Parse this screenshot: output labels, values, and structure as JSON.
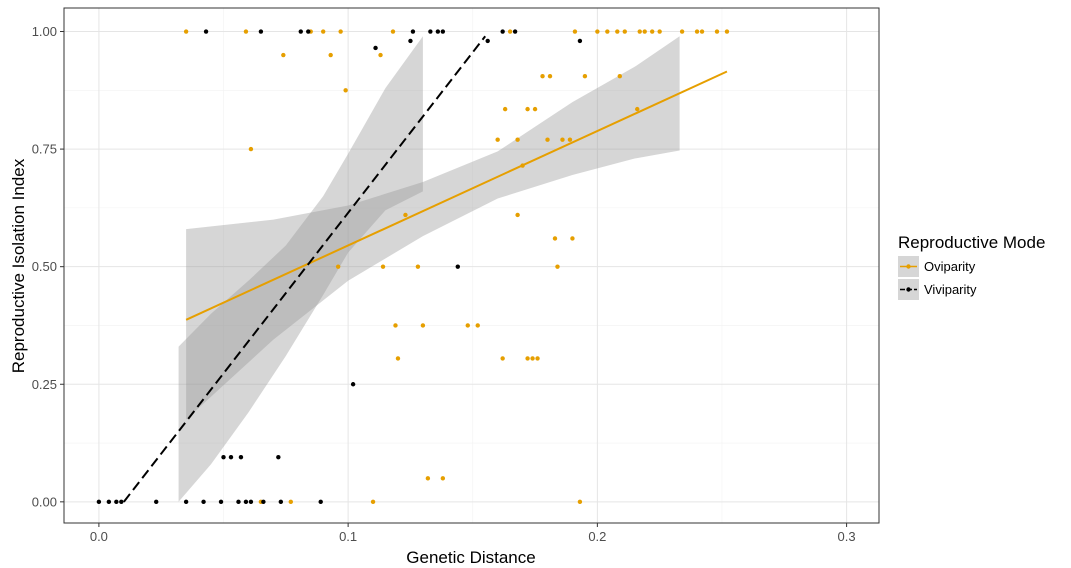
{
  "chart_data": {
    "type": "scatter",
    "xlabel": "Genetic Distance",
    "ylabel": "Reproductive Isolation Index",
    "xlim": [
      -0.014,
      0.313
    ],
    "ylim": [
      -0.045,
      1.05
    ],
    "x_ticks": [
      0.0,
      0.1,
      0.2,
      0.3
    ],
    "x_tick_labels": [
      "0.0",
      "0.1",
      "0.2",
      "0.3"
    ],
    "y_ticks": [
      0.0,
      0.25,
      0.5,
      0.75,
      1.0
    ],
    "y_tick_labels": [
      "0.00",
      "0.25",
      "0.50",
      "0.75",
      "1.00"
    ],
    "grid": true,
    "legend": {
      "title": "Reproductive Mode",
      "position": "right"
    },
    "series": [
      {
        "name": "Oviparity",
        "color": "#E69F00",
        "line_style": "solid",
        "points": [
          [
            0.035,
            1.0
          ],
          [
            0.059,
            1.0
          ],
          [
            0.074,
            0.95
          ],
          [
            0.085,
            1.0
          ],
          [
            0.09,
            1.0
          ],
          [
            0.093,
            0.95
          ],
          [
            0.097,
            1.0
          ],
          [
            0.099,
            0.875
          ],
          [
            0.113,
            0.95
          ],
          [
            0.118,
            1.0
          ],
          [
            0.119,
            0.375
          ],
          [
            0.12,
            0.305
          ],
          [
            0.123,
            0.61
          ],
          [
            0.128,
            0.5
          ],
          [
            0.13,
            0.375
          ],
          [
            0.132,
            0.05
          ],
          [
            0.138,
            0.05
          ],
          [
            0.148,
            0.375
          ],
          [
            0.152,
            0.375
          ],
          [
            0.16,
            0.77
          ],
          [
            0.162,
            0.305
          ],
          [
            0.163,
            0.835
          ],
          [
            0.165,
            1.0
          ],
          [
            0.168,
            0.61
          ],
          [
            0.168,
            0.77
          ],
          [
            0.17,
            0.715
          ],
          [
            0.172,
            0.305
          ],
          [
            0.172,
            0.835
          ],
          [
            0.174,
            0.305
          ],
          [
            0.175,
            0.835
          ],
          [
            0.176,
            0.305
          ],
          [
            0.178,
            0.905
          ],
          [
            0.18,
            0.77
          ],
          [
            0.181,
            0.905
          ],
          [
            0.183,
            0.56
          ],
          [
            0.184,
            0.5
          ],
          [
            0.186,
            0.77
          ],
          [
            0.189,
            0.77
          ],
          [
            0.19,
            0.56
          ],
          [
            0.191,
            1.0
          ],
          [
            0.193,
            0.0
          ],
          [
            0.195,
            0.905
          ],
          [
            0.2,
            1.0
          ],
          [
            0.204,
            1.0
          ],
          [
            0.208,
            1.0
          ],
          [
            0.209,
            0.905
          ],
          [
            0.211,
            1.0
          ],
          [
            0.216,
            0.835
          ],
          [
            0.217,
            1.0
          ],
          [
            0.219,
            1.0
          ],
          [
            0.222,
            1.0
          ],
          [
            0.225,
            1.0
          ],
          [
            0.234,
            1.0
          ],
          [
            0.24,
            1.0
          ],
          [
            0.242,
            1.0
          ],
          [
            0.248,
            1.0
          ],
          [
            0.252,
            1.0
          ],
          [
            0.061,
            0.75
          ],
          [
            0.065,
            0.0
          ],
          [
            0.077,
            0.0
          ],
          [
            0.11,
            0.0
          ],
          [
            0.096,
            0.5
          ],
          [
            0.114,
            0.5
          ]
        ],
        "fit_line": [
          [
            0.035,
            0.387
          ],
          [
            0.252,
            0.915
          ]
        ],
        "confidence_band": {
          "x": [
            0.035,
            0.07,
            0.1,
            0.13,
            0.16,
            0.19,
            0.215,
            0.233
          ],
          "lower": [
            0.175,
            0.345,
            0.47,
            0.565,
            0.645,
            0.695,
            0.73,
            0.747
          ],
          "upper": [
            0.58,
            0.6,
            0.63,
            0.68,
            0.745,
            0.85,
            0.925,
            0.99
          ]
        }
      },
      {
        "name": "Viviparity",
        "color": "#000000",
        "line_style": "dashed",
        "points": [
          [
            0.0,
            0.0
          ],
          [
            0.004,
            0.0
          ],
          [
            0.007,
            0.0
          ],
          [
            0.009,
            0.0
          ],
          [
            0.023,
            0.0
          ],
          [
            0.035,
            0.0
          ],
          [
            0.042,
            0.0
          ],
          [
            0.043,
            1.0
          ],
          [
            0.049,
            0.0
          ],
          [
            0.05,
            0.095
          ],
          [
            0.053,
            0.095
          ],
          [
            0.056,
            0.0
          ],
          [
            0.057,
            0.095
          ],
          [
            0.059,
            0.0
          ],
          [
            0.061,
            0.0
          ],
          [
            0.065,
            1.0
          ],
          [
            0.066,
            0.0
          ],
          [
            0.072,
            0.095
          ],
          [
            0.073,
            0.0
          ],
          [
            0.081,
            1.0
          ],
          [
            0.084,
            1.0
          ],
          [
            0.089,
            0.0
          ],
          [
            0.102,
            0.25
          ],
          [
            0.111,
            0.965
          ],
          [
            0.125,
            0.98
          ],
          [
            0.126,
            1.0
          ],
          [
            0.133,
            1.0
          ],
          [
            0.136,
            1.0
          ],
          [
            0.138,
            1.0
          ],
          [
            0.144,
            0.5
          ],
          [
            0.156,
            0.98
          ],
          [
            0.162,
            1.0
          ],
          [
            0.167,
            1.0
          ],
          [
            0.193,
            0.98
          ]
        ],
        "fit_line": [
          [
            0.01,
            0.0
          ],
          [
            0.155,
            0.99
          ]
        ],
        "confidence_band": {
          "x": [
            0.032,
            0.045,
            0.06,
            0.075,
            0.09,
            0.1,
            0.115,
            0.13
          ],
          "lower": [
            0.0,
            0.08,
            0.19,
            0.31,
            0.44,
            0.53,
            0.62,
            0.66
          ],
          "upper": [
            0.33,
            0.4,
            0.47,
            0.545,
            0.65,
            0.74,
            0.88,
            0.99
          ]
        }
      }
    ]
  }
}
